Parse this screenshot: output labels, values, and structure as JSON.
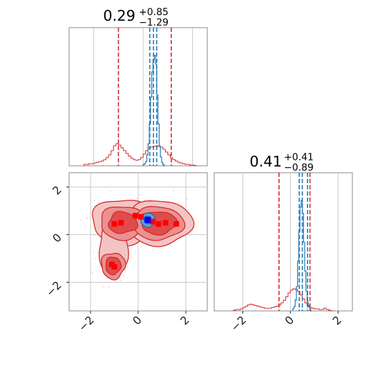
{
  "chart_data": {
    "type": "corner",
    "grid": true,
    "colors": {
      "posterior": "#d62728",
      "reference": "#1f77b4",
      "true_value": "#0000ff",
      "samples": "#ff0000"
    },
    "panels": [
      {
        "id": "marginal-x",
        "type": "histogram",
        "title": {
          "median": "0.29",
          "plus": "+0.85",
          "minus": "−1.29"
        },
        "x_ticks": [
          -2,
          0,
          2
        ],
        "xlim": [
          -3.0,
          2.6
        ],
        "red_hist": {
          "bin_start": -2.4,
          "bin_width": 0.1,
          "heights": [
            0.02,
            0.02,
            0.03,
            0.03,
            0.04,
            0.05,
            0.06,
            0.07,
            0.09,
            0.12,
            0.16,
            0.22,
            0.29,
            0.32,
            0.3,
            0.26,
            0.22,
            0.18,
            0.14,
            0.11,
            0.09,
            0.08,
            0.09,
            0.12,
            0.17,
            0.22,
            0.26,
            0.27,
            0.28,
            0.29,
            0.28,
            0.27,
            0.24,
            0.2,
            0.16,
            0.12,
            0.09,
            0.07,
            0.05,
            0.04,
            0.03,
            0.02,
            0.02,
            0.01,
            0.01,
            0.0
          ]
        },
        "red_quantiles": [
          -1.0,
          1.14
        ],
        "blue_hist": {
          "bin_start": 0.0,
          "bin_width": 0.05,
          "heights": [
            0.01,
            0.02,
            0.04,
            0.1,
            0.2,
            0.38,
            0.62,
            0.85,
            0.96,
            1.0,
            0.92,
            0.64,
            0.38,
            0.18,
            0.08,
            0.03,
            0.01,
            0.0
          ]
        },
        "blue_quantiles": [
          0.27,
          0.42,
          0.55
        ]
      },
      {
        "id": "marginal-y",
        "type": "histogram",
        "title": {
          "median": "0.41",
          "plus": "+0.41",
          "minus": "−0.89"
        },
        "x_ticks": [
          -2,
          0,
          2
        ],
        "xlim": [
          -3.2,
          2.6
        ],
        "red_hist": {
          "bin_start": -2.4,
          "bin_width": 0.1,
          "heights": [
            0.01,
            0.02,
            0.02,
            0.03,
            0.05,
            0.07,
            0.09,
            0.1,
            0.09,
            0.08,
            0.07,
            0.06,
            0.05,
            0.04,
            0.04,
            0.04,
            0.05,
            0.06,
            0.07,
            0.09,
            0.12,
            0.16,
            0.21,
            0.27,
            0.31,
            0.33,
            0.32,
            0.29,
            0.24,
            0.18,
            0.12,
            0.08,
            0.05,
            0.04,
            0.03,
            0.03,
            0.02,
            0.02,
            0.04,
            0.02,
            0.01,
            0.0
          ]
        },
        "red_quantiles": [
          -0.48,
          0.82
        ],
        "blue_hist": {
          "bin_start": 0.1,
          "bin_width": 0.05,
          "heights": [
            0.02,
            0.04,
            0.1,
            0.22,
            0.45,
            0.72,
            0.94,
            1.0,
            0.88,
            0.62,
            0.36,
            0.18,
            0.08,
            0.04,
            0.02,
            0.0
          ]
        },
        "blue_quantiles": [
          0.37,
          0.5,
          0.72
        ]
      },
      {
        "id": "joint",
        "type": "contour",
        "x_ticks": [
          -2,
          0,
          2
        ],
        "y_ticks": [
          -2,
          0,
          2
        ],
        "xlim": [
          -2.9,
          2.9
        ],
        "ylim": [
          -3.2,
          2.6
        ],
        "red_markers": [
          [
            -1.0,
            0.45
          ],
          [
            -0.72,
            0.5
          ],
          [
            -0.12,
            0.8
          ],
          [
            0.12,
            0.75
          ],
          [
            0.6,
            0.55
          ],
          [
            0.85,
            0.45
          ],
          [
            1.15,
            0.5
          ],
          [
            1.6,
            0.45
          ],
          [
            -1.1,
            -1.25
          ],
          [
            -1.0,
            -1.35
          ]
        ],
        "blue_marker": [
          0.4,
          0.62
        ]
      }
    ]
  }
}
